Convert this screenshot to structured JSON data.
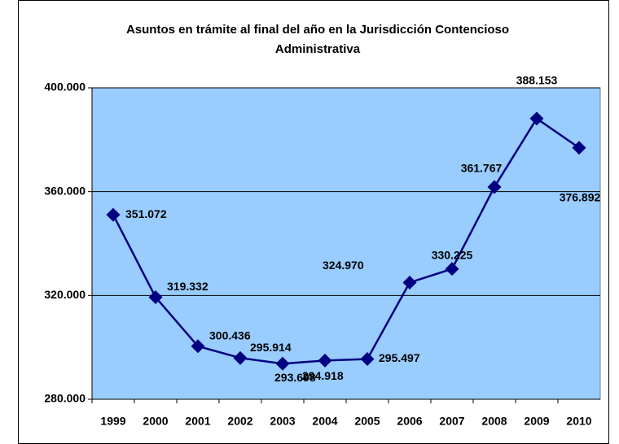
{
  "chart_data": {
    "type": "line",
    "title": [
      "Asuntos en trámite al final del año en la Jurisdicción Contencioso",
      "Administrativa"
    ],
    "categories": [
      "1999",
      "2000",
      "2001",
      "2002",
      "2003",
      "2004",
      "2005",
      "2006",
      "2007",
      "2008",
      "2009",
      "2010"
    ],
    "series": [
      {
        "name": "Asuntos en trámite",
        "color": "#000080",
        "values": [
          351072,
          319332,
          300436,
          295914,
          293698,
          294918,
          295497,
          324970,
          330225,
          361767,
          388153,
          376892
        ],
        "value_labels": [
          "351.072",
          "319.332",
          "300.436",
          "295.914",
          "293.698",
          "294.918",
          "295.497",
          "324.970",
          "330.225",
          "361.767",
          "388.153",
          "376.892"
        ]
      }
    ],
    "ylim": [
      280000,
      400000
    ],
    "yticks": [
      {
        "value": 280000,
        "label": "280.000"
      },
      {
        "value": 320000,
        "label": "320.000"
      },
      {
        "value": 360000,
        "label": "360.000"
      },
      {
        "value": 400000,
        "label": "400.000"
      }
    ],
    "grid": true,
    "plot_background": "#99ccff"
  }
}
